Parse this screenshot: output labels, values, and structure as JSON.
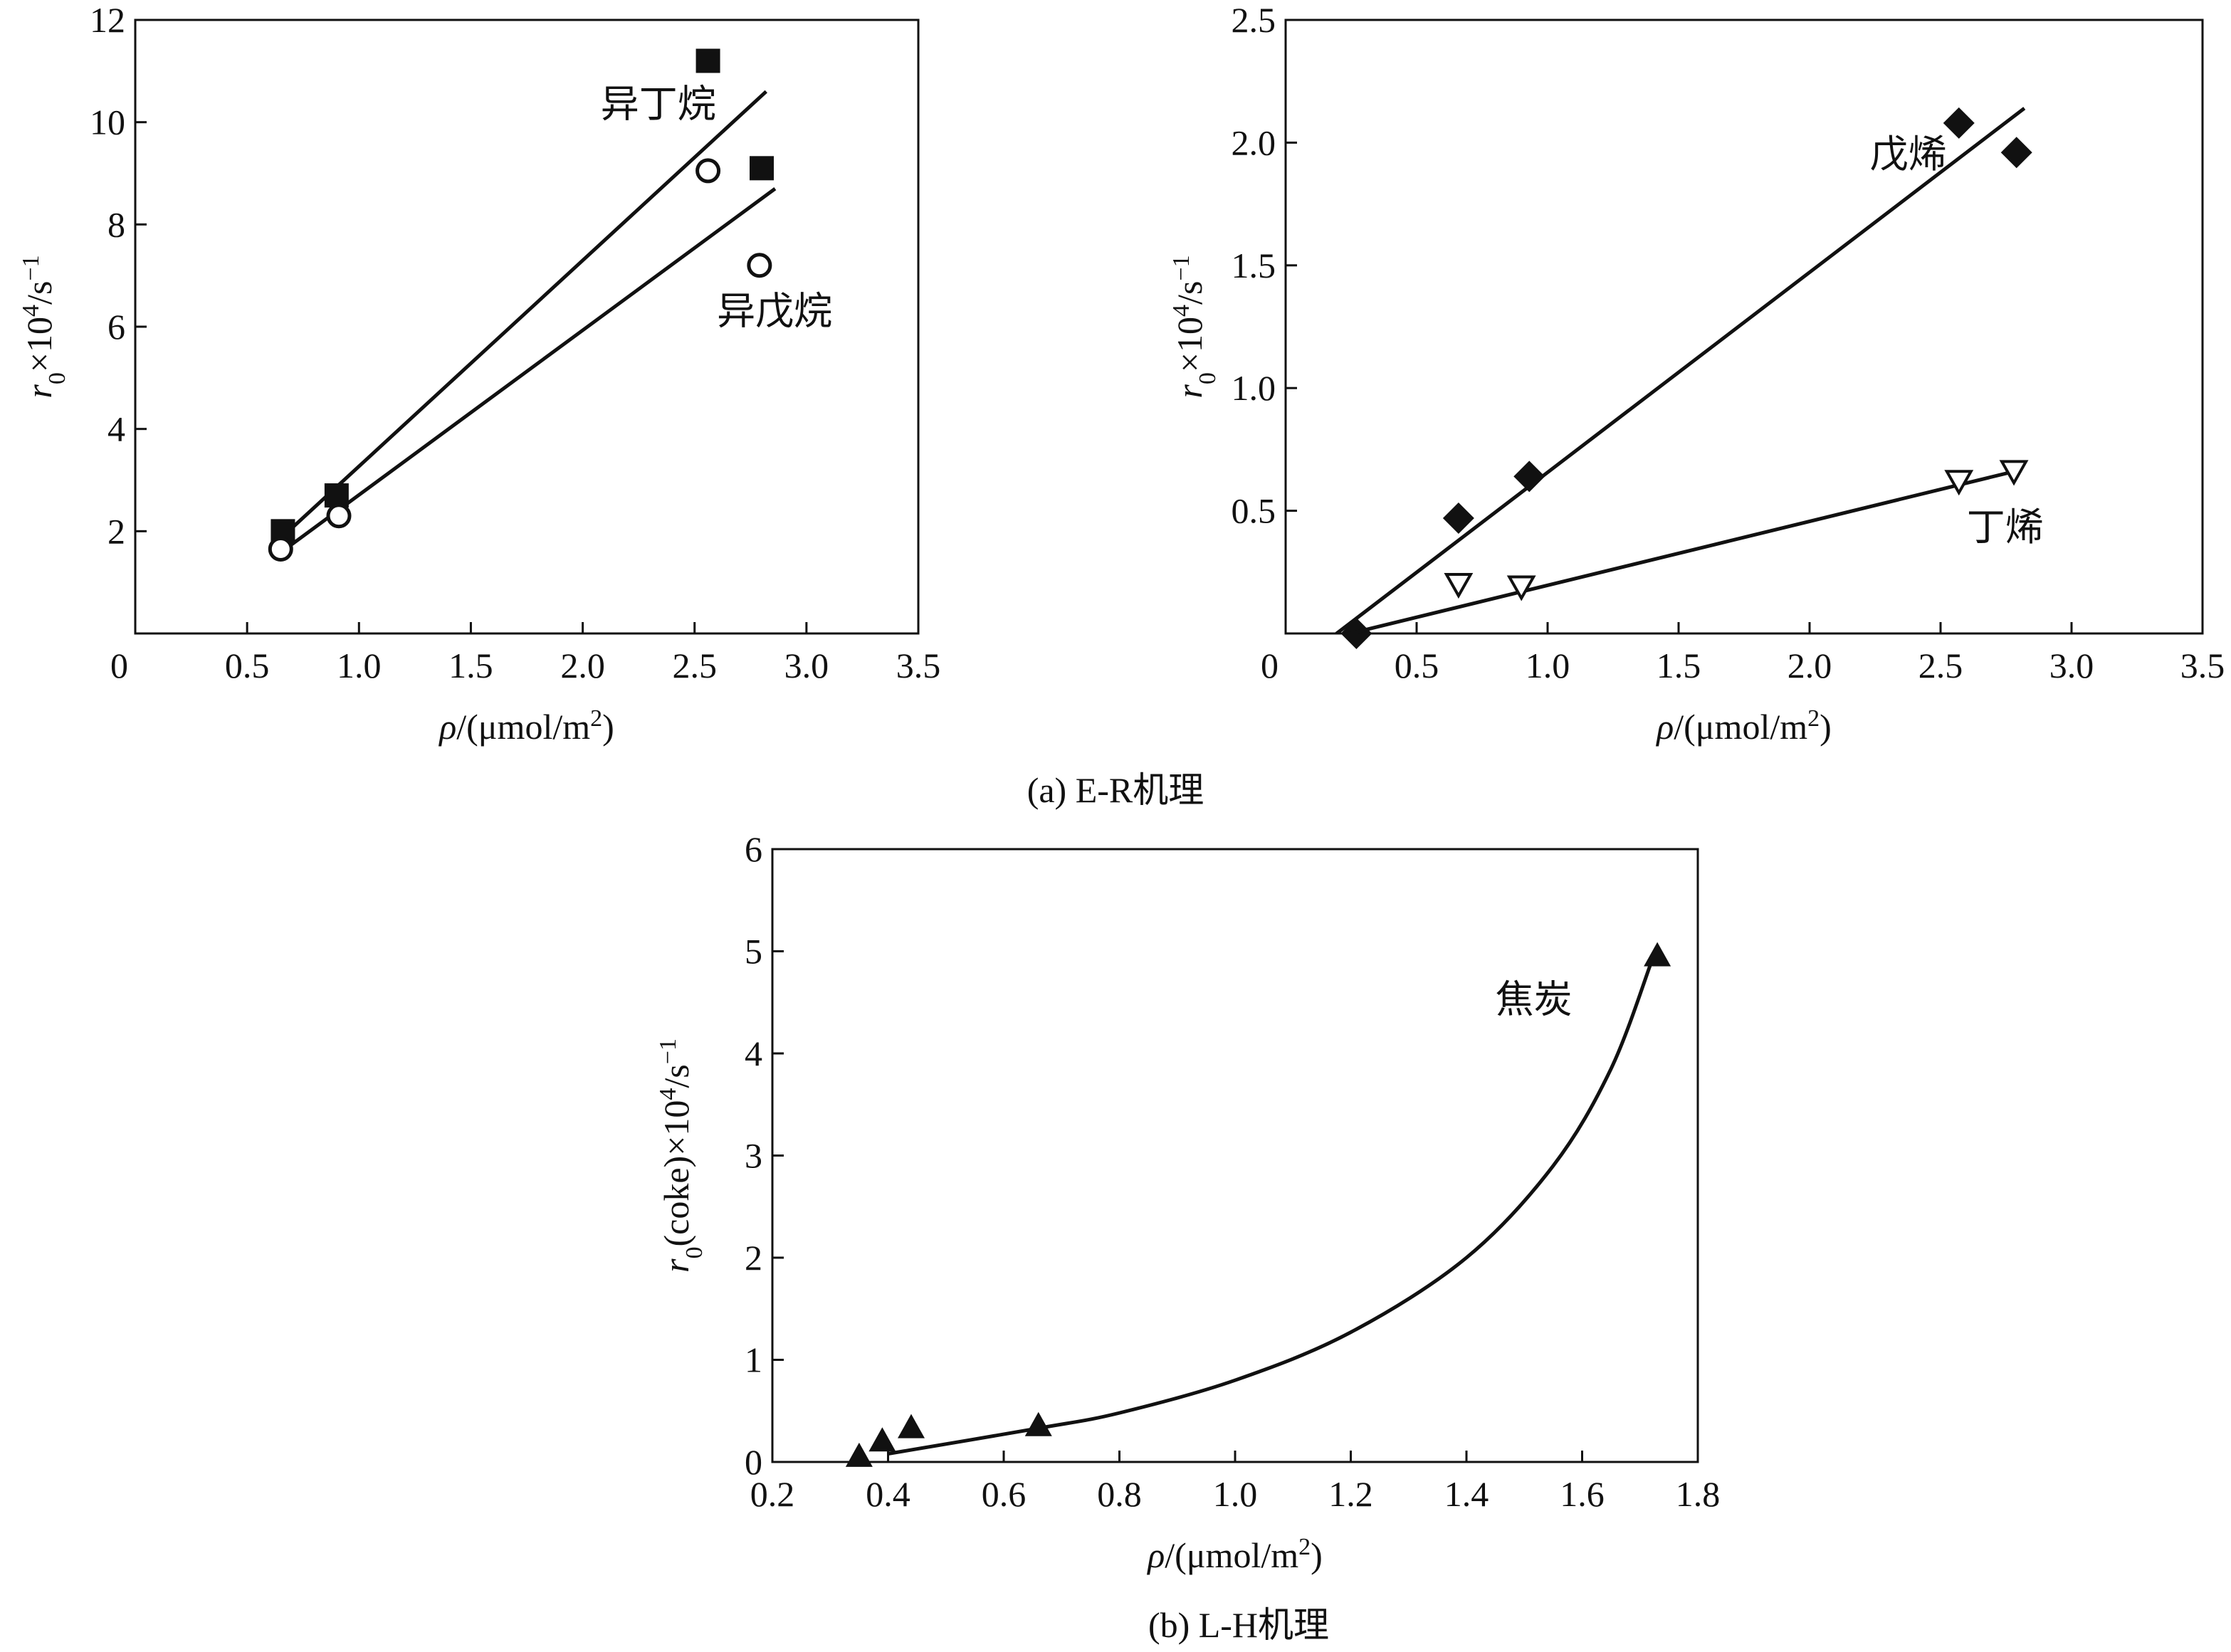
{
  "captions": {
    "a": "(a) E-R机理",
    "b": "(b) L-H机理"
  },
  "chart_data": [
    {
      "id": "chart1",
      "type": "scatter",
      "xlabel_sym": "ρ",
      "xlabel_rest": "/(μmol/m",
      "xlabel_sup": "2",
      "xlabel_end": ")",
      "ylabel_sym": "r",
      "ylabel_sub": "0",
      "ylabel_mid": "×10",
      "ylabel_sup1": "4",
      "ylabel_rest": "/s",
      "ylabel_sup2": "−1",
      "xlim": [
        0,
        3.5
      ],
      "ylim": [
        0,
        12
      ],
      "xticks": [
        0,
        0.5,
        1.0,
        1.5,
        2.0,
        2.5,
        3.0,
        3.5
      ],
      "xtick_labels": [
        "0",
        "0.5",
        "1.0",
        "1.5",
        "2.0",
        "2.5",
        "3.0",
        "3.5"
      ],
      "yticks": [
        2,
        4,
        6,
        8,
        10,
        12
      ],
      "ytick_labels": [
        "2",
        "4",
        "6",
        "8",
        "10",
        "12"
      ],
      "series": [
        {
          "name": "异丁烷",
          "marker": "square",
          "x": [
            0.66,
            0.9,
            2.56,
            2.8
          ],
          "y": [
            2.0,
            2.7,
            11.2,
            9.1
          ],
          "fit": [
            [
              0.66,
              1.9
            ],
            [
              2.82,
              10.6
            ]
          ],
          "label_at": [
            2.08,
            10.1
          ]
        },
        {
          "name": "异戊烷",
          "marker": "circle",
          "x": [
            0.65,
            0.91,
            2.56,
            2.79
          ],
          "y": [
            1.65,
            2.3,
            9.05,
            7.2
          ],
          "fit": [
            [
              0.64,
              1.55
            ],
            [
              2.86,
              8.7
            ]
          ],
          "label_at": [
            2.6,
            6.05
          ]
        }
      ]
    },
    {
      "id": "chart2",
      "type": "scatter",
      "xlabel_sym": "ρ",
      "xlabel_rest": "/(μmol/m",
      "xlabel_sup": "2",
      "xlabel_end": ")",
      "ylabel_sym": "r",
      "ylabel_sub": "0",
      "ylabel_mid": "×10",
      "ylabel_sup1": "4",
      "ylabel_rest": "/s",
      "ylabel_sup2": "−1",
      "xlim": [
        0,
        3.5
      ],
      "ylim": [
        0,
        2.5
      ],
      "xticks": [
        0,
        0.5,
        1.0,
        1.5,
        2.0,
        2.5,
        3.0,
        3.5
      ],
      "xtick_labels": [
        "0",
        "0.5",
        "1.0",
        "1.5",
        "2.0",
        "2.5",
        "3.0",
        "3.5"
      ],
      "yticks": [
        0.5,
        1.0,
        1.5,
        2.0,
        2.5
      ],
      "ytick_labels": [
        "0.5",
        "1.0",
        "1.5",
        "2.0",
        "2.5"
      ],
      "series": [
        {
          "name": "戊烯",
          "marker": "diamond",
          "x": [
            0.27,
            0.66,
            0.93,
            2.57,
            2.79
          ],
          "y": [
            0.0,
            0.47,
            0.64,
            2.08,
            1.96
          ],
          "fit": [
            [
              0.17,
              -0.02
            ],
            [
              2.82,
              2.14
            ]
          ],
          "label_at": [
            2.23,
            1.9
          ]
        },
        {
          "name": "丁烯",
          "marker": "triangle-down-open",
          "x": [
            0.66,
            0.9,
            2.57,
            2.78
          ],
          "y": [
            0.2,
            0.19,
            0.62,
            0.66
          ],
          "fit": [
            [
              0.17,
              -0.02
            ],
            [
              2.78,
              0.66
            ]
          ],
          "label_at": [
            2.6,
            0.38
          ]
        }
      ]
    },
    {
      "id": "chart3",
      "type": "scatter",
      "xlabel_sym": "ρ",
      "xlabel_rest": "/(μmol/m",
      "xlabel_sup": "2",
      "xlabel_end": ")",
      "ylabel_sym": "r",
      "ylabel_sub": "0",
      "ylabel_mid": "(coke)×10",
      "ylabel_sup1": "4",
      "ylabel_rest": "/s",
      "ylabel_sup2": "−1",
      "xlim": [
        0.2,
        1.8
      ],
      "ylim": [
        0,
        6
      ],
      "xticks": [
        0.2,
        0.4,
        0.6,
        0.8,
        1.0,
        1.2,
        1.4,
        1.6,
        1.8
      ],
      "xtick_labels": [
        "0.2",
        "0.4",
        "0.6",
        "0.8",
        "1.0",
        "1.2",
        "1.4",
        "1.6",
        "1.8"
      ],
      "yticks": [
        0,
        1,
        2,
        3,
        4,
        5,
        6
      ],
      "ytick_labels": [
        "0",
        "1",
        "2",
        "3",
        "4",
        "5",
        "6"
      ],
      "series": [
        {
          "name": "焦炭",
          "marker": "triangle-up",
          "x": [
            0.35,
            0.39,
            0.44,
            0.66,
            1.73
          ],
          "y": [
            0.05,
            0.2,
            0.33,
            0.35,
            4.95
          ],
          "curve": [
            [
              0.4,
              0.08
            ],
            [
              0.66,
              0.33
            ],
            [
              0.8,
              0.48
            ],
            [
              1.0,
              0.8
            ],
            [
              1.2,
              1.27
            ],
            [
              1.4,
              2.0
            ],
            [
              1.55,
              2.9
            ],
            [
              1.65,
              3.85
            ],
            [
              1.72,
              4.9
            ]
          ],
          "label_at": [
            1.45,
            4.4
          ]
        }
      ]
    }
  ]
}
